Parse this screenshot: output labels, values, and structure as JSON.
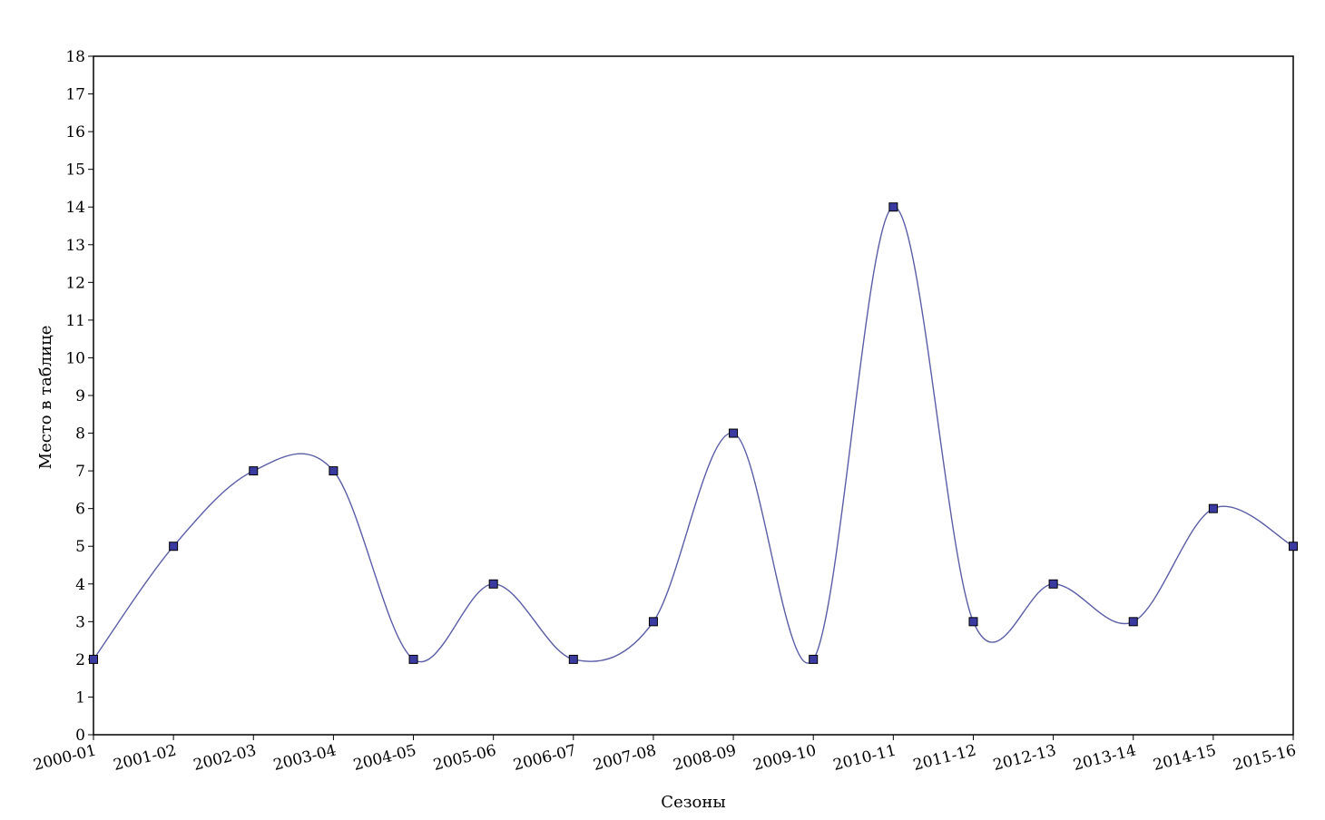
{
  "chart_data": {
    "type": "line",
    "title": "",
    "xlabel": "Сезоны",
    "ylabel": "Место в таблице",
    "categories": [
      "2000-01",
      "2001-02",
      "2002-03",
      "2003-04",
      "2004-05",
      "2005-06",
      "2006-07",
      "2007-08",
      "2008-09",
      "2009-10",
      "2010-11",
      "2011-12",
      "2012-13",
      "2013-14",
      "2014-15",
      "2015-16"
    ],
    "series": [
      {
        "values": [
          2,
          5,
          7,
          7,
          2,
          4,
          2,
          3,
          8,
          2,
          14,
          3,
          4,
          3,
          6,
          5
        ],
        "line_color": "#5b5ea6",
        "marker_fill": "#3a3aa0",
        "marker_stroke": "#000000",
        "marker": "square",
        "smooth": true
      }
    ],
    "ylim": [
      0,
      18
    ],
    "yticks": [
      "0",
      "1",
      "2",
      "3",
      "4",
      "5",
      "6",
      "7",
      "8",
      "9",
      "10",
      "11",
      "12",
      "13",
      "14",
      "15",
      "16",
      "17",
      "18"
    ],
    "grid": false,
    "legend": "none"
  }
}
